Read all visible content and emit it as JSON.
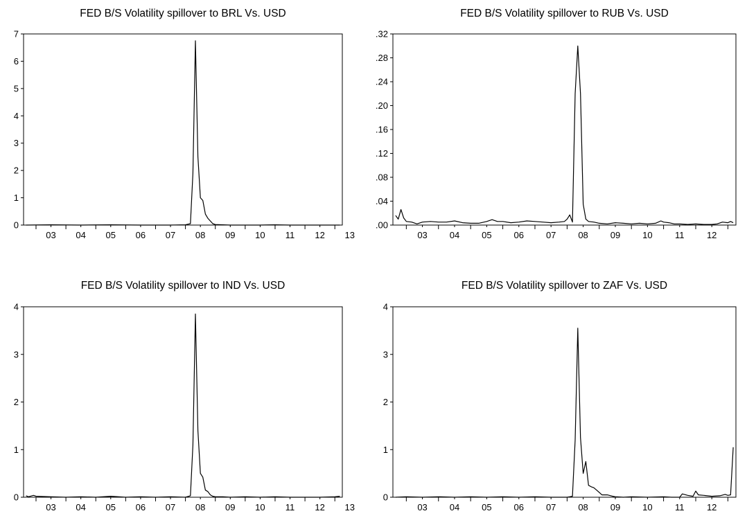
{
  "chart_data": [
    {
      "type": "line",
      "title": "FED B/S Volatility spillover to BRL Vs. USD",
      "xlabel": "",
      "ylabel": "",
      "x_range": [
        2002.583,
        2013.25
      ],
      "ylim": [
        0,
        7
      ],
      "y_ticks": [
        0,
        1,
        2,
        3,
        4,
        5,
        6,
        7
      ],
      "y_tick_labels": [
        "0",
        "1",
        "2",
        "3",
        "4",
        "5",
        "6",
        "7"
      ],
      "x_ticks": [
        2003,
        2004,
        2005,
        2006,
        2007,
        2008,
        2009,
        2010,
        2011,
        2012,
        2013
      ],
      "x_tick_labels": [
        "03",
        "04",
        "05",
        "06",
        "07",
        "08",
        "09",
        "10",
        "11",
        "12",
        "13"
      ],
      "grid": false,
      "x": [
        2002.667,
        2003.5,
        2004.5,
        2005.5,
        2006.5,
        2007.5,
        2008.0,
        2008.167,
        2008.25,
        2008.333,
        2008.417,
        2008.5,
        2008.583,
        2008.667,
        2008.75,
        2008.833,
        2008.917,
        2009.0,
        2009.25,
        2009.5,
        2010.0,
        2010.5,
        2011.0,
        2011.5,
        2012.0,
        2012.5,
        2013.0,
        2013.167
      ],
      "values": [
        0.0,
        0.01,
        0.0,
        0.01,
        0.0,
        0.0,
        0.01,
        0.05,
        1.9,
        6.75,
        2.5,
        1.0,
        0.9,
        0.4,
        0.25,
        0.15,
        0.05,
        0.02,
        0.01,
        0.0,
        0.0,
        0.0,
        0.01,
        0.0,
        0.0,
        0.0,
        0.0,
        0.0
      ]
    },
    {
      "type": "line",
      "title": "FED B/S Volatility spillover to RUB Vs. USD",
      "xlabel": "",
      "ylabel": "",
      "x_range": [
        2002.583,
        2013.25
      ],
      "ylim": [
        0,
        0.32
      ],
      "y_ticks": [
        0,
        0.04,
        0.08,
        0.12,
        0.16,
        0.2,
        0.24,
        0.28,
        0.32
      ],
      "y_tick_labels": [
        ".00",
        ".04",
        ".08",
        ".12",
        ".16",
        ".20",
        ".24",
        ".28",
        ".32"
      ],
      "x_ticks": [
        2003,
        2004,
        2005,
        2006,
        2007,
        2008,
        2009,
        2010,
        2011,
        2012,
        2013
      ],
      "x_tick_labels": [
        "03",
        "04",
        "05",
        "06",
        "07",
        "08",
        "09",
        "10",
        "11",
        "12",
        "13"
      ],
      "grid": false,
      "x": [
        2002.667,
        2002.75,
        2002.833,
        2002.917,
        2003.0,
        2003.167,
        2003.333,
        2003.5,
        2003.75,
        2004.0,
        2004.25,
        2004.5,
        2004.75,
        2005.0,
        2005.25,
        2005.5,
        2005.667,
        2005.833,
        2006.0,
        2006.25,
        2006.5,
        2006.75,
        2007.0,
        2007.25,
        2007.5,
        2007.75,
        2007.917,
        2008.0,
        2008.083,
        2008.167,
        2008.25,
        2008.333,
        2008.417,
        2008.5,
        2008.583,
        2008.667,
        2008.833,
        2009.0,
        2009.25,
        2009.5,
        2009.75,
        2010.0,
        2010.25,
        2010.5,
        2010.75,
        2010.917,
        2011.0,
        2011.167,
        2011.333,
        2011.5,
        2011.75,
        2012.0,
        2012.25,
        2012.5,
        2012.667,
        2012.833,
        2013.0,
        2013.083,
        2013.167
      ],
      "values": [
        0.016,
        0.01,
        0.026,
        0.012,
        0.006,
        0.005,
        0.002,
        0.005,
        0.006,
        0.005,
        0.005,
        0.007,
        0.004,
        0.003,
        0.003,
        0.006,
        0.009,
        0.006,
        0.006,
        0.004,
        0.005,
        0.007,
        0.006,
        0.005,
        0.004,
        0.005,
        0.006,
        0.01,
        0.017,
        0.005,
        0.22,
        0.3,
        0.22,
        0.035,
        0.01,
        0.006,
        0.005,
        0.003,
        0.002,
        0.004,
        0.003,
        0.002,
        0.003,
        0.002,
        0.003,
        0.007,
        0.005,
        0.004,
        0.002,
        0.002,
        0.001,
        0.002,
        0.001,
        0.001,
        0.002,
        0.005,
        0.004,
        0.006,
        0.004
      ]
    },
    {
      "type": "line",
      "title": "FED B/S Volatility spillover to IND Vs. USD",
      "xlabel": "",
      "ylabel": "",
      "x_range": [
        2002.583,
        2013.25
      ],
      "ylim": [
        0,
        4
      ],
      "y_ticks": [
        0,
        1,
        2,
        3,
        4
      ],
      "y_tick_labels": [
        "0",
        "1",
        "2",
        "3",
        "4"
      ],
      "x_ticks": [
        2003,
        2004,
        2005,
        2006,
        2007,
        2008,
        2009,
        2010,
        2011,
        2012,
        2013
      ],
      "x_tick_labels": [
        "03",
        "04",
        "05",
        "06",
        "07",
        "08",
        "09",
        "10",
        "11",
        "12",
        "13"
      ],
      "grid": false,
      "x": [
        2002.667,
        2002.75,
        2002.917,
        2003.0,
        2003.5,
        2004.0,
        2004.5,
        2005.0,
        2005.5,
        2006.0,
        2006.5,
        2007.0,
        2007.5,
        2008.0,
        2008.167,
        2008.25,
        2008.333,
        2008.417,
        2008.5,
        2008.583,
        2008.667,
        2008.75,
        2008.833,
        2008.917,
        2009.0,
        2009.25,
        2009.5,
        2010.0,
        2010.5,
        2011.0,
        2011.5,
        2012.0,
        2012.5,
        2013.0,
        2013.167
      ],
      "values": [
        0.03,
        0.01,
        0.04,
        0.02,
        0.01,
        0.0,
        0.01,
        0.0,
        0.02,
        0.0,
        0.01,
        0.0,
        0.01,
        0.0,
        0.03,
        1.1,
        3.85,
        1.4,
        0.5,
        0.42,
        0.15,
        0.12,
        0.05,
        0.02,
        0.01,
        0.01,
        0.0,
        0.01,
        0.0,
        0.01,
        0.0,
        0.0,
        0.0,
        0.01,
        0.02
      ]
    },
    {
      "type": "line",
      "title": "FED B/S Volatility spillover to ZAF Vs. USD",
      "xlabel": "",
      "ylabel": "",
      "x_range": [
        2002.583,
        2013.25
      ],
      "ylim": [
        0,
        4
      ],
      "y_ticks": [
        0,
        1,
        2,
        3,
        4
      ],
      "y_tick_labels": [
        "0",
        "1",
        "2",
        "3",
        "4"
      ],
      "x_ticks": [
        2003,
        2004,
        2005,
        2006,
        2007,
        2008,
        2009,
        2010,
        2011,
        2012,
        2013
      ],
      "x_tick_labels": [
        "03",
        "04",
        "05",
        "06",
        "07",
        "08",
        "09",
        "10",
        "11",
        "12",
        "13"
      ],
      "grid": false,
      "x": [
        2002.667,
        2003.0,
        2003.5,
        2004.0,
        2004.5,
        2005.0,
        2005.5,
        2006.0,
        2006.5,
        2007.0,
        2007.5,
        2008.0,
        2008.083,
        2008.167,
        2008.25,
        2008.333,
        2008.417,
        2008.5,
        2008.583,
        2008.667,
        2008.75,
        2008.833,
        2008.917,
        2009.0,
        2009.083,
        2009.25,
        2009.417,
        2009.5,
        2009.75,
        2010.0,
        2010.5,
        2011.0,
        2011.25,
        2011.5,
        2011.583,
        2011.75,
        2011.917,
        2012.0,
        2012.083,
        2012.25,
        2012.5,
        2012.75,
        2012.917,
        2013.0,
        2013.083,
        2013.167
      ],
      "values": [
        0.0,
        0.01,
        0.0,
        0.01,
        0.0,
        0.01,
        0.0,
        0.01,
        0.0,
        0.01,
        0.0,
        0.0,
        0.01,
        0.02,
        1.2,
        3.55,
        1.25,
        0.5,
        0.75,
        0.25,
        0.22,
        0.2,
        0.15,
        0.1,
        0.05,
        0.05,
        0.02,
        0.01,
        0.0,
        0.01,
        0.0,
        0.01,
        0.0,
        0.0,
        0.07,
        0.04,
        0.02,
        0.13,
        0.05,
        0.04,
        0.02,
        0.03,
        0.06,
        0.04,
        0.05,
        1.05
      ]
    }
  ]
}
